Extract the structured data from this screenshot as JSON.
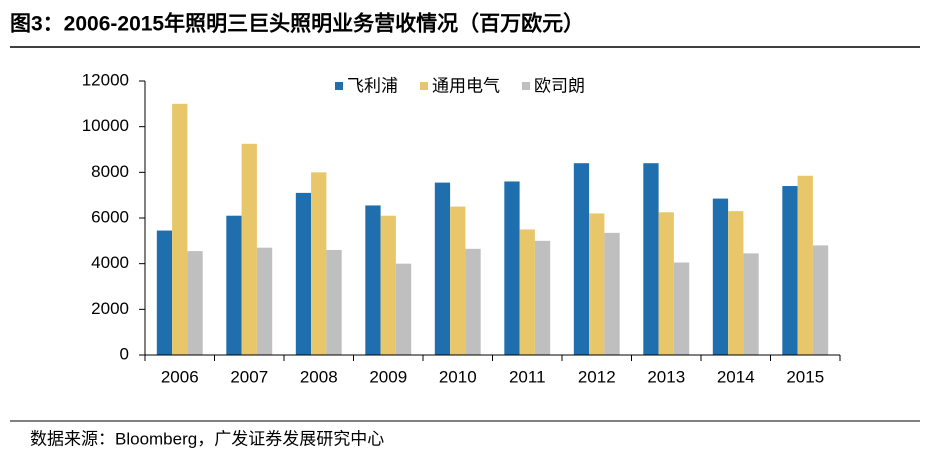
{
  "chart_data": {
    "type": "bar",
    "title": "图3：2006-2015年照明三巨头照明业务营收情况（百万欧元）",
    "source": "数据来源：Bloomberg，广发证券发展研究中心",
    "categories": [
      "2006",
      "2007",
      "2008",
      "2009",
      "2010",
      "2011",
      "2012",
      "2013",
      "2014",
      "2015"
    ],
    "series": [
      {
        "name": "飞利浦",
        "color": "#1f6eae",
        "values": [
          5450,
          6100,
          7100,
          6550,
          7550,
          7600,
          8400,
          8400,
          6850,
          7400
        ]
      },
      {
        "name": "通用电气",
        "color": "#e8c76a",
        "values": [
          11000,
          9250,
          8000,
          6100,
          6500,
          5500,
          6200,
          6250,
          6300,
          7850
        ]
      },
      {
        "name": "欧司朗",
        "color": "#bfbfbf",
        "values": [
          4550,
          4700,
          4600,
          4000,
          4650,
          5000,
          5350,
          4050,
          4450,
          4800
        ]
      }
    ],
    "ylim": [
      0,
      12000
    ],
    "yticks": [
      0,
      2000,
      4000,
      6000,
      8000,
      10000,
      12000
    ],
    "grid": false,
    "legend": "top"
  }
}
